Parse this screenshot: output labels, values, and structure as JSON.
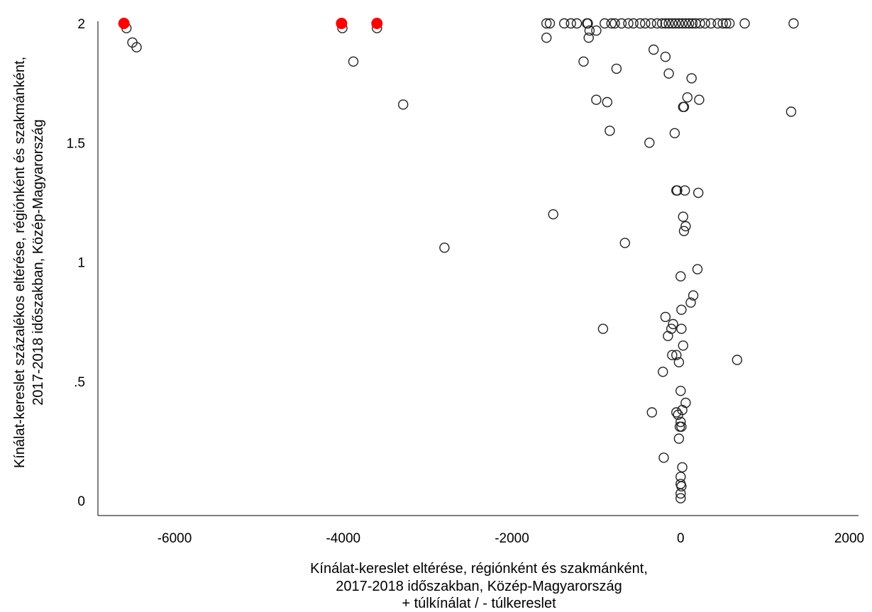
{
  "chart_data": {
    "type": "scatter",
    "title": "",
    "xlabel_lines": [
      "Kínálat-kereslet eltérése, régiónként és szakmánként,",
      "2017-2018 időszakban, Közép-Magyarország",
      "+ túlkínálat / - túlkereslet"
    ],
    "ylabel_lines": [
      "Kínálat-kereslet százalékos eltérése, régiónként és szakmánként,",
      "2017-2018 időszakban, Közép-Magyarország"
    ],
    "xlim": [
      -6750,
      2200
    ],
    "ylim": [
      -0.06,
      2.04
    ],
    "x_ticks": [
      {
        "value": -6000,
        "label": "-6000"
      },
      {
        "value": -4000,
        "label": "-4000"
      },
      {
        "value": -2000,
        "label": "-2000"
      },
      {
        "value": 0,
        "label": "0"
      },
      {
        "value": 2000,
        "label": "2000"
      }
    ],
    "y_ticks": [
      {
        "value": 0,
        "label": "0"
      },
      {
        "value": 0.5,
        "label": ".5"
      },
      {
        "value": 1,
        "label": "1"
      },
      {
        "value": 1.5,
        "label": "1.5"
      },
      {
        "value": 2,
        "label": "2"
      }
    ],
    "grid": false,
    "colors": {
      "highlight": "#ff0000",
      "marker_stroke": "#222222",
      "axis": "#555555"
    },
    "highlighted_points": [
      {
        "x": -6600,
        "y": 2.0
      },
      {
        "x": -4020,
        "y": 2.0
      },
      {
        "x": -3600,
        "y": 2.0
      }
    ],
    "points": [
      {
        "x": -6570,
        "y": 1.98
      },
      {
        "x": -6500,
        "y": 1.92
      },
      {
        "x": -6450,
        "y": 1.9
      },
      {
        "x": -4010,
        "y": 1.98
      },
      {
        "x": -3600,
        "y": 1.98
      },
      {
        "x": -3880,
        "y": 1.84
      },
      {
        "x": -3290,
        "y": 1.66
      },
      {
        "x": -2800,
        "y": 1.06
      },
      {
        "x": -1510,
        "y": 1.2
      },
      {
        "x": -1590,
        "y": 1.94
      },
      {
        "x": -1590,
        "y": 2.0
      },
      {
        "x": -1550,
        "y": 2.0
      },
      {
        "x": -1380,
        "y": 2.0
      },
      {
        "x": -1300,
        "y": 2.0
      },
      {
        "x": -1230,
        "y": 2.0
      },
      {
        "x": -1110,
        "y": 2.0
      },
      {
        "x": -1100,
        "y": 2.0
      },
      {
        "x": -1090,
        "y": 1.94
      },
      {
        "x": -1080,
        "y": 1.97
      },
      {
        "x": -1000,
        "y": 1.97
      },
      {
        "x": -900,
        "y": 2.0
      },
      {
        "x": -820,
        "y": 2.0
      },
      {
        "x": -780,
        "y": 2.0
      },
      {
        "x": -700,
        "y": 2.0
      },
      {
        "x": -620,
        "y": 2.0
      },
      {
        "x": -560,
        "y": 2.0
      },
      {
        "x": -480,
        "y": 2.0
      },
      {
        "x": -420,
        "y": 2.0
      },
      {
        "x": -350,
        "y": 2.0
      },
      {
        "x": -280,
        "y": 2.0
      },
      {
        "x": -220,
        "y": 2.0
      },
      {
        "x": -180,
        "y": 2.0
      },
      {
        "x": -140,
        "y": 2.0
      },
      {
        "x": -100,
        "y": 2.0
      },
      {
        "x": -60,
        "y": 2.0
      },
      {
        "x": -20,
        "y": 2.0
      },
      {
        "x": 20,
        "y": 2.0
      },
      {
        "x": 60,
        "y": 2.0
      },
      {
        "x": 100,
        "y": 2.0
      },
      {
        "x": 140,
        "y": 2.0
      },
      {
        "x": 180,
        "y": 2.0
      },
      {
        "x": 230,
        "y": 2.0
      },
      {
        "x": 290,
        "y": 2.0
      },
      {
        "x": 360,
        "y": 2.0
      },
      {
        "x": 440,
        "y": 2.0
      },
      {
        "x": 500,
        "y": 2.0
      },
      {
        "x": 540,
        "y": 2.0
      },
      {
        "x": 580,
        "y": 2.0
      },
      {
        "x": 760,
        "y": 2.0
      },
      {
        "x": 1340,
        "y": 2.0
      },
      {
        "x": -1150,
        "y": 1.84
      },
      {
        "x": -760,
        "y": 1.81
      },
      {
        "x": -1000,
        "y": 1.68
      },
      {
        "x": -870,
        "y": 1.67
      },
      {
        "x": -840,
        "y": 1.55
      },
      {
        "x": -320,
        "y": 1.89
      },
      {
        "x": -180,
        "y": 1.86
      },
      {
        "x": -140,
        "y": 1.79
      },
      {
        "x": 130,
        "y": 1.77
      },
      {
        "x": 80,
        "y": 1.69
      },
      {
        "x": 220,
        "y": 1.68
      },
      {
        "x": 40,
        "y": 1.65
      },
      {
        "x": 30,
        "y": 1.65
      },
      {
        "x": 1310,
        "y": 1.63
      },
      {
        "x": -70,
        "y": 1.54
      },
      {
        "x": -370,
        "y": 1.5
      },
      {
        "x": -50,
        "y": 1.3
      },
      {
        "x": -40,
        "y": 1.3
      },
      {
        "x": 50,
        "y": 1.3
      },
      {
        "x": 210,
        "y": 1.29
      },
      {
        "x": 30,
        "y": 1.19
      },
      {
        "x": 60,
        "y": 1.15
      },
      {
        "x": 40,
        "y": 1.13
      },
      {
        "x": -660,
        "y": 1.08
      },
      {
        "x": 200,
        "y": 0.97
      },
      {
        "x": 0,
        "y": 0.94
      },
      {
        "x": 150,
        "y": 0.86
      },
      {
        "x": 120,
        "y": 0.83
      },
      {
        "x": 10,
        "y": 0.8
      },
      {
        "x": -180,
        "y": 0.77
      },
      {
        "x": -90,
        "y": 0.74
      },
      {
        "x": -110,
        "y": 0.72
      },
      {
        "x": -920,
        "y": 0.72
      },
      {
        "x": 10,
        "y": 0.72
      },
      {
        "x": -150,
        "y": 0.69
      },
      {
        "x": 30,
        "y": 0.65
      },
      {
        "x": -100,
        "y": 0.61
      },
      {
        "x": -50,
        "y": 0.61
      },
      {
        "x": 670,
        "y": 0.59
      },
      {
        "x": -20,
        "y": 0.58
      },
      {
        "x": -210,
        "y": 0.54
      },
      {
        "x": 0,
        "y": 0.46
      },
      {
        "x": 60,
        "y": 0.41
      },
      {
        "x": 20,
        "y": 0.38
      },
      {
        "x": -50,
        "y": 0.37
      },
      {
        "x": -30,
        "y": 0.36
      },
      {
        "x": -340,
        "y": 0.37
      },
      {
        "x": 0,
        "y": 0.33
      },
      {
        "x": -10,
        "y": 0.31
      },
      {
        "x": 10,
        "y": 0.31
      },
      {
        "x": -20,
        "y": 0.26
      },
      {
        "x": -200,
        "y": 0.18
      },
      {
        "x": 20,
        "y": 0.14
      },
      {
        "x": 0,
        "y": 0.1
      },
      {
        "x": 0,
        "y": 0.07
      },
      {
        "x": 10,
        "y": 0.06
      },
      {
        "x": 0,
        "y": 0.03
      },
      {
        "x": 0,
        "y": 0.01
      }
    ]
  }
}
